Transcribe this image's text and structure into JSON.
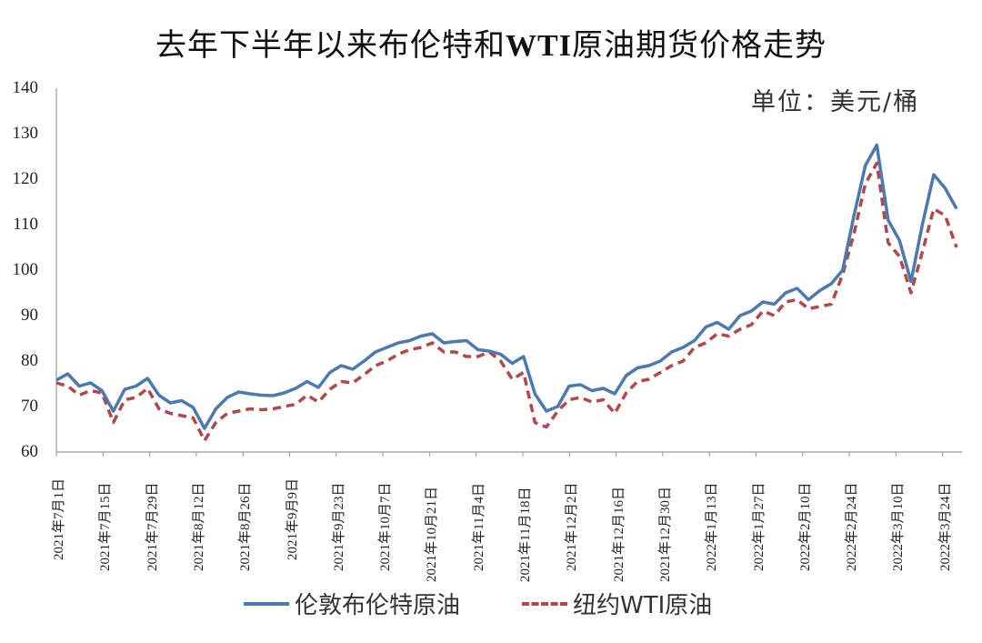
{
  "header": {
    "title_part1": "去年下半年以来布伦特和",
    "title_bold": "WTI",
    "title_part2": "原油期货价格走势",
    "unit": "单位：美元/桶"
  },
  "legend": {
    "series1": "伦敦布伦特原油",
    "series2": "纽约WTI原油"
  },
  "chart_data": {
    "type": "line",
    "title": "去年下半年以来布伦特和WTI原油期货价格走势",
    "xlabel": "",
    "ylabel": "单位：美元/桶",
    "ylim": [
      60,
      140
    ],
    "yticks": [
      60,
      70,
      80,
      90,
      100,
      110,
      120,
      130,
      140
    ],
    "grid": false,
    "legend_position": "bottom",
    "xtick_labels": [
      "2021年7月1日",
      "2021年7月15日",
      "2021年7月29日",
      "2021年8月12日",
      "2021年8月26日",
      "2021年9月9日",
      "2021年9月23日",
      "2021年10月7日",
      "2021年10月21日",
      "2021年11月4日",
      "2021年11月18日",
      "2021年12月2日",
      "2021年12月16日",
      "2021年12月30日",
      "2022年1月13日",
      "2022年1月27日",
      "2022年2月10日",
      "2022年2月24日",
      "2022年3月10日",
      "2022年3月24日"
    ],
    "colors": {
      "brent": "#4a7ab0",
      "wti": "#b5474a"
    },
    "x": [
      "7/1",
      "7/5",
      "7/8",
      "7/12",
      "7/15",
      "7/19",
      "7/22",
      "7/26",
      "7/29",
      "8/2",
      "8/5",
      "8/9",
      "8/12",
      "8/16",
      "8/19",
      "8/23",
      "8/26",
      "8/30",
      "9/2",
      "9/6",
      "9/9",
      "9/13",
      "9/16",
      "9/20",
      "9/23",
      "9/27",
      "9/30",
      "10/4",
      "10/7",
      "10/11",
      "10/14",
      "10/18",
      "10/21",
      "10/25",
      "10/28",
      "11/1",
      "11/4",
      "11/8",
      "11/11",
      "11/15",
      "11/18",
      "11/22",
      "11/25",
      "11/29",
      "12/2",
      "12/6",
      "12/9",
      "12/13",
      "12/16",
      "12/20",
      "12/23",
      "12/27",
      "12/30",
      "1/3",
      "1/6",
      "1/10",
      "1/13",
      "1/17",
      "1/20",
      "1/24",
      "1/27",
      "1/31",
      "2/3",
      "2/7",
      "2/10",
      "2/14",
      "2/17",
      "2/21",
      "2/24",
      "2/28",
      "3/3",
      "3/7",
      "3/8",
      "3/10",
      "3/14",
      "3/17",
      "3/21",
      "3/24",
      "3/28",
      "3/30"
    ],
    "series": [
      {
        "name": "伦敦布伦特原油",
        "values": [
          75.8,
          77.2,
          74.5,
          75.2,
          73.5,
          69.0,
          73.8,
          74.5,
          76.2,
          72.5,
          70.8,
          71.3,
          69.8,
          65.2,
          69.5,
          72.0,
          73.2,
          72.8,
          72.5,
          72.4,
          73.0,
          74.0,
          75.5,
          74.2,
          77.5,
          79.0,
          78.2,
          80.0,
          82.0,
          83.0,
          84.0,
          84.5,
          85.5,
          86.0,
          84.0,
          84.3,
          84.5,
          82.5,
          82.2,
          81.5,
          79.5,
          81.0,
          72.8,
          69.0,
          70.0,
          74.5,
          74.8,
          73.5,
          74.0,
          72.8,
          76.8,
          78.5,
          79.0,
          80.0,
          82.0,
          83.0,
          84.5,
          87.5,
          88.5,
          87.0,
          90.0,
          91.0,
          93.0,
          92.5,
          95.0,
          96.0,
          93.5,
          95.5,
          97.0,
          100.0,
          112.0,
          123.0,
          127.5,
          111.0,
          106.5,
          97.5,
          110.0,
          121.0,
          118.0,
          113.5
        ]
      },
      {
        "name": "纽约WTI原油",
        "values": [
          75.2,
          74.5,
          72.5,
          73.5,
          73.0,
          66.5,
          71.5,
          72.0,
          74.0,
          69.5,
          68.5,
          68.0,
          67.5,
          62.5,
          66.5,
          68.5,
          69.0,
          69.5,
          69.3,
          69.5,
          70.0,
          70.5,
          72.5,
          71.0,
          73.8,
          75.5,
          75.2,
          77.0,
          79.0,
          80.0,
          81.5,
          82.5,
          83.0,
          84.0,
          82.0,
          82.0,
          81.0,
          81.0,
          82.0,
          80.0,
          76.0,
          77.5,
          66.5,
          65.5,
          69.0,
          71.5,
          72.0,
          71.0,
          71.5,
          68.5,
          73.0,
          75.5,
          76.0,
          77.5,
          79.0,
          80.0,
          83.0,
          84.0,
          86.0,
          85.5,
          87.0,
          88.0,
          91.0,
          90.0,
          93.0,
          93.5,
          91.5,
          92.0,
          92.5,
          99.0,
          108.0,
          119.0,
          123.5,
          106.0,
          103.0,
          95.0,
          104.0,
          113.5,
          112.0,
          105.0
        ]
      }
    ]
  }
}
